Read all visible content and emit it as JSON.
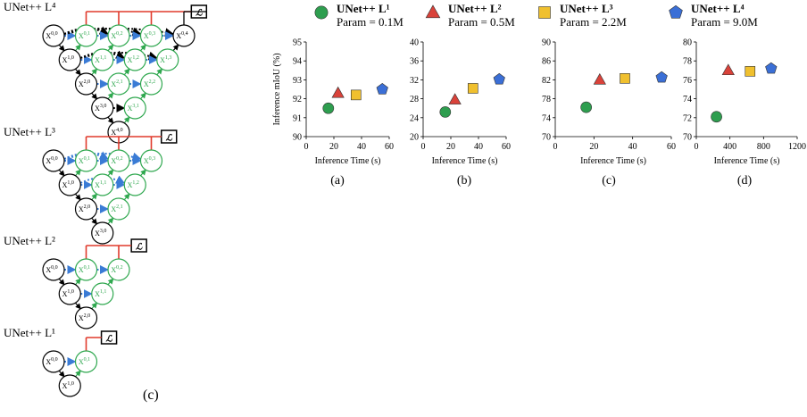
{
  "diagram": {
    "panel_label": "(c)",
    "loss_symbol": "ℒ",
    "networks": [
      {
        "title": "UNet++ L⁴",
        "depth": 4
      },
      {
        "title": "UNet++ L³",
        "depth": 3
      },
      {
        "title": "UNet++ L²",
        "depth": 2
      },
      {
        "title": "UNet++ L¹",
        "depth": 1
      }
    ],
    "node_prefix": "X"
  },
  "legend": [
    {
      "title": "UNet++ L¹",
      "subtitle": "Param = 0.1M",
      "color": "#2e9e4f",
      "marker": "circle"
    },
    {
      "title": "UNet++ L²",
      "subtitle": "Param = 0.5M",
      "color": "#d9423a",
      "marker": "triangle"
    },
    {
      "title": "UNet++ L³",
      "subtitle": "Param = 2.2M",
      "color": "#f0c02e",
      "marker": "square"
    },
    {
      "title": "UNet++ L⁴",
      "subtitle": "Param = 9.0M",
      "color": "#3b6fd6",
      "marker": "pentagon"
    }
  ],
  "chart_data": [
    {
      "type": "scatter",
      "panel": "(a)",
      "xlabel": "Inference Time (s)",
      "ylabel": "Inference mIoU (%)",
      "xlim": [
        0,
        60
      ],
      "ylim": [
        90,
        95
      ],
      "xticks": [
        0,
        20,
        40,
        60
      ],
      "yticks": [
        90,
        91,
        92,
        93,
        94,
        95
      ],
      "series": [
        {
          "name": "UNet++ L¹",
          "x": [
            16
          ],
          "y": [
            91.5
          ]
        },
        {
          "name": "UNet++ L²",
          "x": [
            23
          ],
          "y": [
            92.3
          ]
        },
        {
          "name": "UNet++ L³",
          "x": [
            36
          ],
          "y": [
            92.2
          ]
        },
        {
          "name": "UNet++ L⁴",
          "x": [
            55
          ],
          "y": [
            92.5
          ]
        }
      ]
    },
    {
      "type": "scatter",
      "panel": "(b)",
      "xlabel": "Inference Time (s)",
      "ylabel": "",
      "xlim": [
        0,
        60
      ],
      "ylim": [
        20,
        40
      ],
      "xticks": [
        0,
        20,
        40,
        60
      ],
      "yticks": [
        20,
        24,
        28,
        32,
        36,
        40
      ],
      "series": [
        {
          "name": "UNet++ L¹",
          "x": [
            16
          ],
          "y": [
            25.2
          ]
        },
        {
          "name": "UNet++ L²",
          "x": [
            23
          ],
          "y": [
            27.8
          ]
        },
        {
          "name": "UNet++ L³",
          "x": [
            36
          ],
          "y": [
            30.2
          ]
        },
        {
          "name": "UNet++ L⁴",
          "x": [
            55
          ],
          "y": [
            32.1
          ]
        }
      ]
    },
    {
      "type": "scatter",
      "panel": "(c)",
      "xlabel": "Inference Time (s)",
      "ylabel": "",
      "xlim": [
        0,
        60
      ],
      "ylim": [
        70,
        90
      ],
      "xticks": [
        0,
        20,
        40,
        60
      ],
      "yticks": [
        70,
        74,
        78,
        82,
        86,
        90
      ],
      "series": [
        {
          "name": "UNet++ L¹",
          "x": [
            16
          ],
          "y": [
            76.2
          ]
        },
        {
          "name": "UNet++ L²",
          "x": [
            23
          ],
          "y": [
            82.0
          ]
        },
        {
          "name": "UNet++ L³",
          "x": [
            36
          ],
          "y": [
            82.3
          ]
        },
        {
          "name": "UNet++ L⁴",
          "x": [
            55
          ],
          "y": [
            82.5
          ]
        }
      ]
    },
    {
      "type": "scatter",
      "panel": "(d)",
      "xlabel": "Inference Time (s)",
      "ylabel": "",
      "xlim": [
        0,
        1200
      ],
      "ylim": [
        70,
        80
      ],
      "xticks": [
        0,
        400,
        800,
        1200
      ],
      "yticks": [
        70,
        72,
        74,
        76,
        78,
        80
      ],
      "series": [
        {
          "name": "UNet++ L¹",
          "x": [
            240
          ],
          "y": [
            72.1
          ]
        },
        {
          "name": "UNet++ L²",
          "x": [
            380
          ],
          "y": [
            77.0
          ]
        },
        {
          "name": "UNet++ L³",
          "x": [
            640
          ],
          "y": [
            76.9
          ]
        },
        {
          "name": "UNet++ L⁴",
          "x": [
            890
          ],
          "y": [
            77.2
          ]
        }
      ]
    }
  ]
}
